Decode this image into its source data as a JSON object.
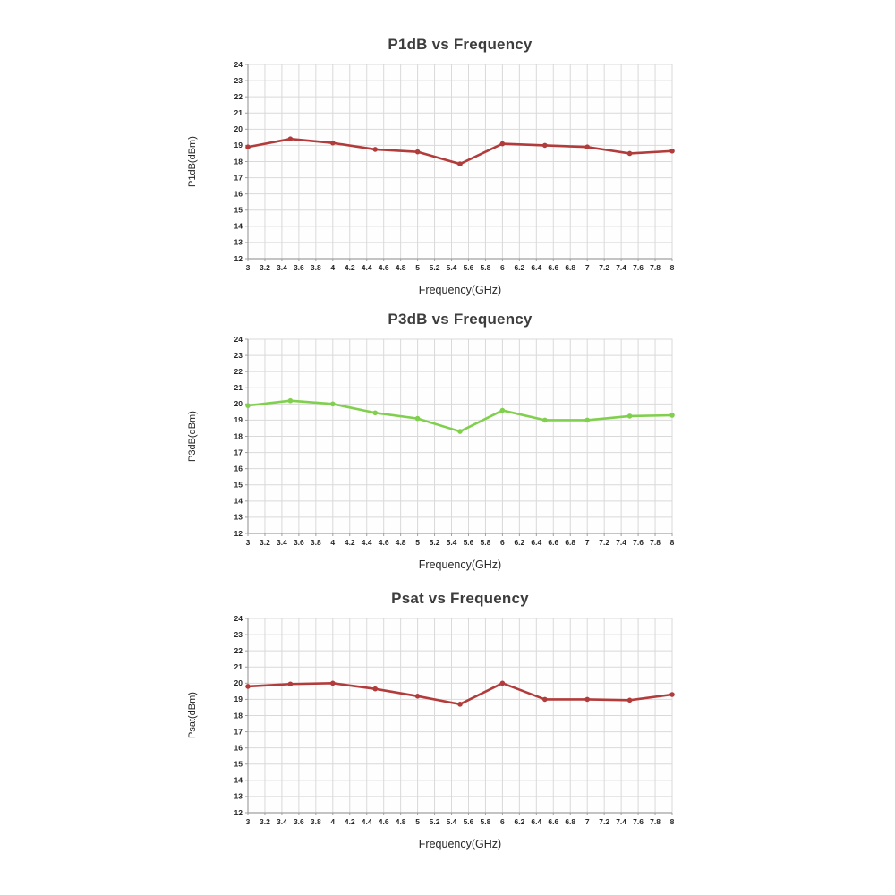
{
  "page": {
    "background": "#ffffff"
  },
  "chart_data": [
    {
      "type": "line",
      "title": "P1dB vs Frequency",
      "xlabel": "Frequency(GHz)",
      "ylabel": "P1dB(dBm)",
      "line_color": "#b23c3b",
      "grid_color": "#d9d9d9",
      "axis_color": "#a0a0a0",
      "tick_text_color": "#262626",
      "grid": true,
      "legend_position": "none",
      "xlim": [
        3,
        8
      ],
      "ylim": [
        12,
        24
      ],
      "xticks": [
        3,
        3.2,
        3.4,
        3.6,
        3.8,
        4,
        4.2,
        4.4,
        4.6,
        4.8,
        5,
        5.2,
        5.4,
        5.6,
        5.8,
        6,
        6.2,
        6.4,
        6.6,
        6.8,
        7,
        7.2,
        7.4,
        7.6,
        7.8,
        8
      ],
      "yticks": [
        12,
        13,
        14,
        15,
        16,
        17,
        18,
        19,
        20,
        21,
        22,
        23,
        24
      ],
      "x": [
        3,
        3.5,
        4,
        4.5,
        5,
        5.5,
        6,
        6.5,
        7,
        7.5,
        8
      ],
      "values": [
        18.9,
        19.4,
        19.15,
        18.75,
        18.6,
        17.85,
        19.1,
        19.0,
        18.9,
        18.5,
        18.65
      ]
    },
    {
      "type": "line",
      "title": "P3dB vs Frequency",
      "xlabel": "Frequency(GHz)",
      "ylabel": "P3dB(dBm)",
      "line_color": "#80d04e",
      "grid_color": "#d9d9d9",
      "axis_color": "#a0a0a0",
      "tick_text_color": "#262626",
      "grid": true,
      "legend_position": "none",
      "xlim": [
        3,
        8
      ],
      "ylim": [
        12,
        24
      ],
      "xticks": [
        3,
        3.2,
        3.4,
        3.6,
        3.8,
        4,
        4.2,
        4.4,
        4.6,
        4.8,
        5,
        5.2,
        5.4,
        5.6,
        5.8,
        6,
        6.2,
        6.4,
        6.6,
        6.8,
        7,
        7.2,
        7.4,
        7.6,
        7.8,
        8
      ],
      "yticks": [
        12,
        13,
        14,
        15,
        16,
        17,
        18,
        19,
        20,
        21,
        22,
        23,
        24
      ],
      "x": [
        3,
        3.5,
        4,
        4.5,
        5,
        5.5,
        6,
        6.5,
        7,
        7.5,
        8
      ],
      "values": [
        19.9,
        20.2,
        20.0,
        19.45,
        19.1,
        18.3,
        19.6,
        19.0,
        19.0,
        19.25,
        19.3
      ]
    },
    {
      "type": "line",
      "title": "Psat vs Frequency",
      "xlabel": "Frequency(GHz)",
      "ylabel": "Psat(dBm)",
      "line_color": "#b23c3b",
      "grid_color": "#d9d9d9",
      "axis_color": "#a0a0a0",
      "tick_text_color": "#262626",
      "grid": true,
      "legend_position": "none",
      "xlim": [
        3,
        8
      ],
      "ylim": [
        12,
        24
      ],
      "xticks": [
        3,
        3.2,
        3.4,
        3.6,
        3.8,
        4,
        4.2,
        4.4,
        4.6,
        4.8,
        5,
        5.2,
        5.4,
        5.6,
        5.8,
        6,
        6.2,
        6.4,
        6.6,
        6.8,
        7,
        7.2,
        7.4,
        7.6,
        7.8,
        8
      ],
      "yticks": [
        12,
        13,
        14,
        15,
        16,
        17,
        18,
        19,
        20,
        21,
        22,
        23,
        24
      ],
      "x": [
        3,
        3.5,
        4,
        4.5,
        5,
        5.5,
        6,
        6.5,
        7,
        7.5,
        8
      ],
      "values": [
        19.8,
        19.95,
        20.0,
        19.65,
        19.2,
        18.7,
        20.0,
        19.0,
        19.0,
        18.95,
        19.3
      ]
    }
  ]
}
